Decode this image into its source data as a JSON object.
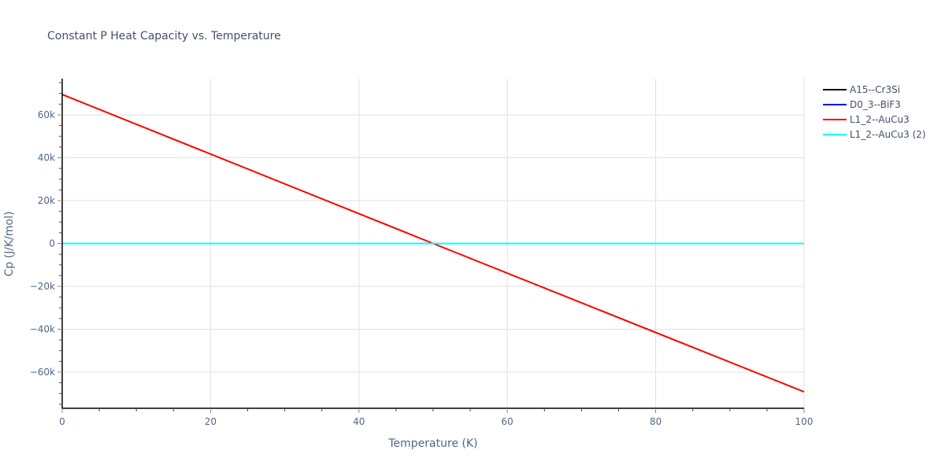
{
  "chart_data": {
    "type": "line",
    "title": "Constant P Heat Capacity vs. Temperature",
    "xlabel": "Temperature (K)",
    "ylabel": "Cp (J/K/mol)",
    "xlim": [
      0,
      100
    ],
    "ylim": [
      -77000,
      77000
    ],
    "x_ticks": [
      0,
      20,
      40,
      60,
      80,
      100
    ],
    "x_tick_labels": [
      "0",
      "20",
      "40",
      "60",
      "80",
      "100"
    ],
    "y_ticks": [
      -60000,
      -40000,
      -20000,
      0,
      20000,
      40000,
      60000
    ],
    "y_tick_labels": [
      "−60k",
      "−40k",
      "−20k",
      "0",
      "20k",
      "40k",
      "60k"
    ],
    "grid": true,
    "legend_position": "right",
    "series": [
      {
        "name": "A15--Cr3Si",
        "color": "#000000",
        "x": [
          0,
          100
        ],
        "y": [
          0,
          0
        ]
      },
      {
        "name": "D0_3--BiF3",
        "color": "#0000ff",
        "x": [
          0,
          100
        ],
        "y": [
          0,
          0
        ]
      },
      {
        "name": "L1_2--AuCu3",
        "color": "#ff0000",
        "x": [
          0,
          50,
          100
        ],
        "y": [
          69500,
          0,
          -69200
        ]
      },
      {
        "name": "L1_2--AuCu3 (2)",
        "color": "#00ffff",
        "x": [
          0,
          100
        ],
        "y": [
          0,
          0
        ]
      }
    ]
  }
}
